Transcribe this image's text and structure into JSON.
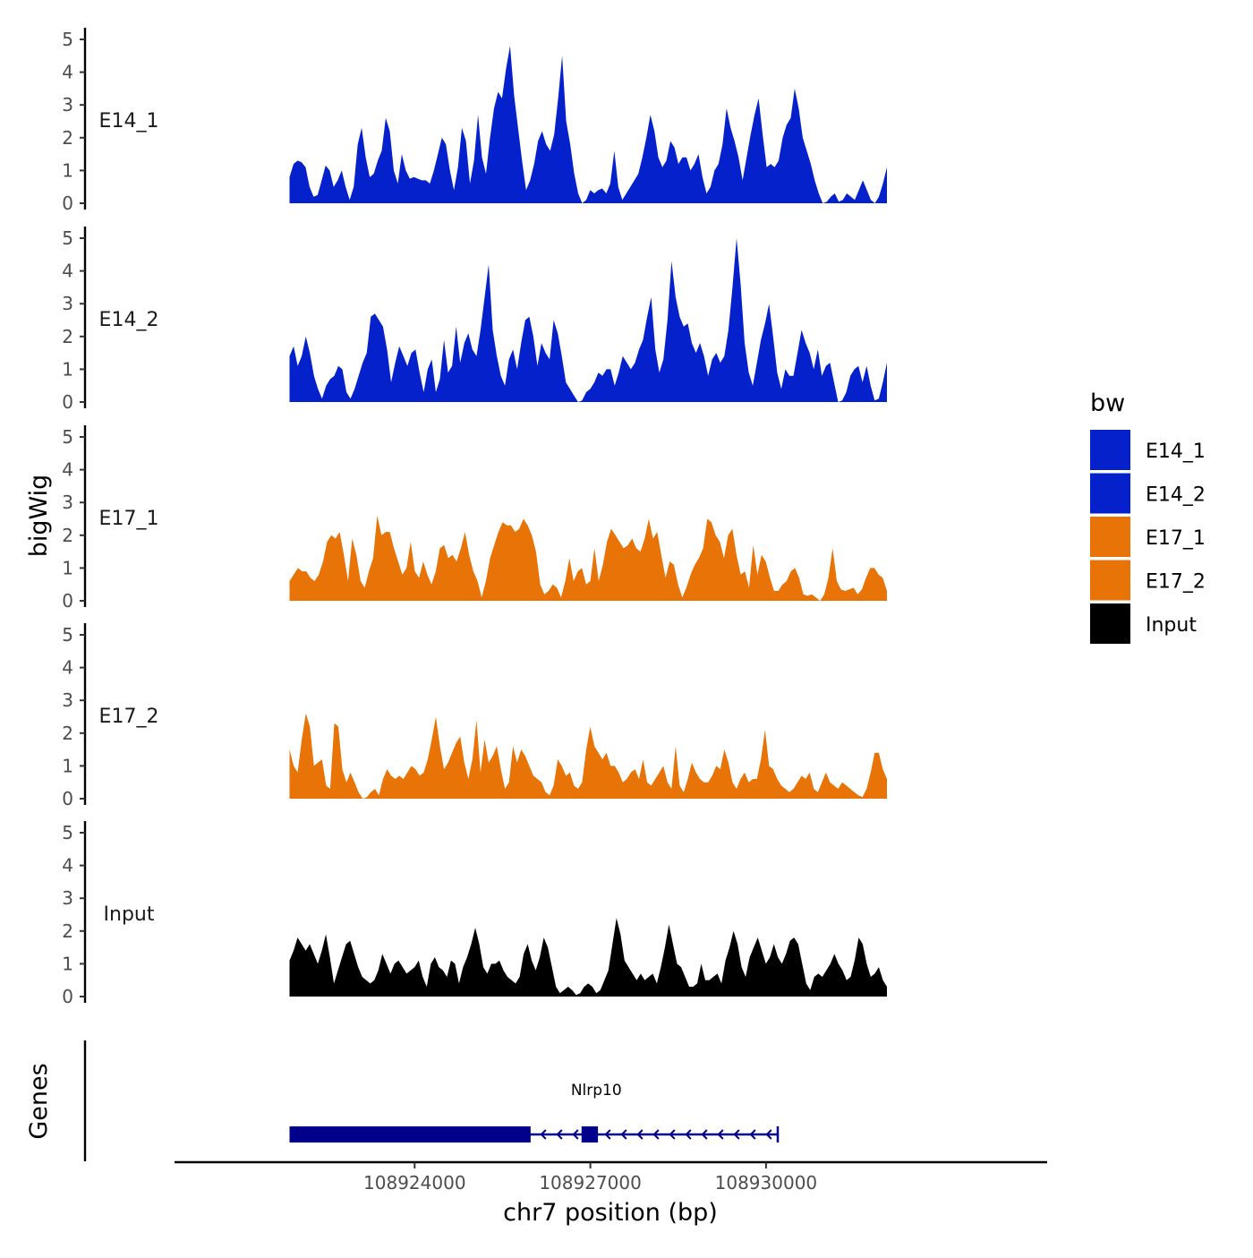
{
  "chart_data": {
    "type": "area",
    "title": "",
    "ylabel": "bigWig",
    "genes_label": "Genes",
    "xlabel": "chr7 position (bp)",
    "xlim": [
      108919900,
      108934800
    ],
    "ylim": [
      0,
      5.3
    ],
    "x_ticks": [
      108924000,
      108927000,
      108930000
    ],
    "y_ticks": [
      0,
      1,
      2,
      3,
      4,
      5
    ],
    "legend": {
      "title": "bw",
      "entries": [
        {
          "label": "E14_1",
          "color": "#0421CC"
        },
        {
          "label": "E14_2",
          "color": "#0421CC"
        },
        {
          "label": "E17_1",
          "color": "#E87306"
        },
        {
          "label": "E17_2",
          "color": "#E87306"
        },
        {
          "label": "Input",
          "color": "#000000"
        }
      ]
    },
    "track_start": 108921864,
    "track_end": 108932064,
    "tracks": [
      {
        "name": "E14_1",
        "color": "#0421CC",
        "values": [
          0.8,
          1.2,
          1.3,
          1.25,
          1.1,
          0.5,
          0.2,
          0.25,
          0.7,
          1.15,
          1.0,
          0.5,
          0.7,
          1.0,
          0.5,
          0.1,
          0.5,
          1.8,
          2.3,
          1.4,
          0.8,
          0.9,
          1.3,
          1.6,
          2.6,
          2.2,
          1.0,
          0.6,
          1.5,
          1.0,
          0.75,
          0.8,
          0.75,
          0.7,
          0.7,
          0.6,
          1.0,
          1.5,
          2.0,
          1.8,
          1.0,
          0.4,
          1.1,
          2.3,
          1.9,
          0.6,
          1.3,
          2.7,
          1.4,
          0.9,
          2.0,
          2.9,
          3.4,
          3.2,
          4.1,
          4.8,
          3.3,
          2.3,
          1.3,
          0.4,
          0.7,
          1.2,
          1.9,
          2.2,
          1.8,
          1.6,
          2.1,
          3.2,
          4.5,
          2.5,
          1.8,
          0.9,
          0.3,
          0.0,
          0.1,
          0.4,
          0.3,
          0.4,
          0.45,
          0.3,
          0.6,
          1.6,
          0.5,
          0.1,
          0.3,
          0.5,
          0.7,
          0.9,
          1.4,
          2.0,
          2.7,
          2.2,
          1.4,
          1.1,
          1.3,
          1.9,
          1.7,
          1.2,
          1.4,
          1.4,
          1.0,
          1.2,
          1.5,
          0.8,
          0.3,
          0.5,
          1.0,
          1.2,
          1.8,
          2.9,
          2.3,
          1.9,
          1.4,
          0.7,
          1.4,
          2.1,
          2.7,
          3.2,
          2.1,
          1.1,
          1.2,
          1.1,
          1.3,
          2.0,
          2.4,
          2.6,
          3.5,
          2.9,
          2.0,
          1.6,
          1.2,
          0.7,
          0.3,
          0.0,
          0.05,
          0.2,
          0.3,
          0.05,
          0.1,
          0.3,
          0.2,
          0.1,
          0.4,
          0.7,
          0.4,
          0.1,
          0.0,
          0.2,
          0.6,
          1.1
        ]
      },
      {
        "name": "E14_2",
        "color": "#0421CC",
        "values": [
          1.4,
          1.7,
          1.1,
          1.4,
          2.0,
          1.5,
          0.8,
          0.4,
          0.1,
          0.5,
          0.7,
          0.8,
          1.1,
          1.0,
          0.3,
          0.1,
          0.4,
          0.8,
          1.2,
          1.5,
          2.6,
          2.7,
          2.5,
          2.3,
          1.6,
          0.6,
          1.2,
          1.7,
          1.4,
          1.1,
          1.5,
          1.6,
          0.9,
          0.3,
          1.0,
          1.3,
          0.3,
          0.7,
          1.9,
          0.9,
          1.1,
          2.3,
          1.2,
          1.8,
          2.1,
          1.6,
          1.4,
          2.2,
          3.2,
          4.2,
          2.2,
          1.4,
          0.8,
          0.5,
          1.3,
          1.6,
          1.0,
          1.8,
          2.5,
          2.6,
          2.0,
          1.1,
          1.8,
          1.5,
          1.3,
          2.5,
          2.1,
          1.4,
          0.6,
          0.4,
          0.2,
          0.0,
          0.05,
          0.3,
          0.4,
          0.6,
          0.9,
          0.8,
          1.0,
          1.0,
          0.5,
          0.9,
          1.4,
          1.2,
          1.0,
          1.2,
          1.6,
          1.9,
          2.6,
          3.2,
          1.6,
          0.9,
          1.3,
          2.5,
          4.3,
          3.2,
          2.6,
          2.3,
          2.4,
          1.8,
          1.5,
          1.8,
          1.4,
          0.8,
          1.3,
          1.5,
          1.2,
          1.4,
          2.2,
          3.5,
          5.0,
          3.6,
          1.8,
          0.9,
          0.5,
          1.2,
          1.9,
          2.4,
          3.0,
          2.0,
          0.9,
          0.4,
          1.0,
          0.8,
          0.8,
          1.5,
          2.2,
          1.8,
          1.5,
          1.0,
          1.6,
          0.8,
          1.1,
          1.2,
          0.6,
          0.0,
          0.05,
          0.3,
          0.8,
          1.0,
          1.1,
          0.6,
          1.1,
          0.5,
          0.05,
          0.1,
          0.6,
          1.2
        ]
      },
      {
        "name": "E17_1",
        "color": "#E87306",
        "values": [
          0.6,
          0.8,
          1.0,
          0.9,
          0.9,
          0.7,
          0.6,
          0.8,
          1.2,
          1.8,
          2.0,
          1.9,
          2.1,
          1.4,
          0.6,
          1.9,
          1.4,
          0.6,
          0.4,
          0.9,
          1.3,
          2.6,
          2.0,
          2.1,
          2.1,
          1.6,
          1.2,
          0.8,
          1.0,
          1.8,
          0.9,
          0.7,
          1.2,
          0.8,
          0.5,
          0.9,
          1.6,
          1.7,
          1.3,
          1.4,
          1.2,
          1.6,
          2.1,
          1.4,
          0.9,
          0.6,
          0.1,
          0.6,
          1.3,
          1.7,
          2.1,
          2.4,
          2.3,
          2.3,
          2.1,
          2.2,
          2.5,
          2.3,
          2.0,
          1.5,
          0.5,
          0.2,
          0.3,
          0.5,
          0.4,
          0.1,
          0.6,
          1.3,
          0.6,
          0.9,
          1.0,
          0.5,
          0.6,
          1.6,
          0.6,
          1.1,
          1.8,
          2.2,
          2.0,
          1.8,
          1.6,
          1.7,
          1.9,
          1.6,
          1.5,
          1.9,
          2.5,
          1.9,
          2.1,
          1.4,
          0.7,
          1.2,
          1.1,
          0.5,
          0.1,
          0.4,
          0.8,
          1.1,
          1.3,
          1.6,
          2.5,
          2.4,
          2.0,
          1.8,
          1.3,
          2.0,
          2.2,
          1.4,
          0.8,
          0.9,
          0.4,
          1.7,
          0.8,
          1.4,
          1.2,
          0.7,
          0.3,
          0.3,
          0.5,
          0.6,
          0.9,
          1.0,
          0.7,
          0.2,
          0.15,
          0.2,
          0.1,
          0.0,
          0.2,
          0.7,
          1.6,
          0.6,
          0.35,
          0.3,
          0.35,
          0.4,
          0.2,
          0.35,
          0.7,
          1.0,
          1.0,
          0.8,
          0.7,
          0.3
        ]
      },
      {
        "name": "E17_2",
        "color": "#E87306",
        "values": [
          1.5,
          1.0,
          0.8,
          1.8,
          2.6,
          2.2,
          1.0,
          1.1,
          1.2,
          0.4,
          0.3,
          2.3,
          2.2,
          0.9,
          0.5,
          0.8,
          0.5,
          0.2,
          0.0,
          0.05,
          0.2,
          0.3,
          0.1,
          0.6,
          0.9,
          0.7,
          0.6,
          0.7,
          0.6,
          0.8,
          1.0,
          0.9,
          0.7,
          0.8,
          1.2,
          1.8,
          2.5,
          1.6,
          0.9,
          1.1,
          1.4,
          1.7,
          1.9,
          1.1,
          0.6,
          1.2,
          2.4,
          0.8,
          1.8,
          1.1,
          1.3,
          1.6,
          0.9,
          0.3,
          0.5,
          1.6,
          1.1,
          1.5,
          1.3,
          1.0,
          0.7,
          0.6,
          0.5,
          0.2,
          0.1,
          0.4,
          1.2,
          1.0,
          0.7,
          0.8,
          0.4,
          0.3,
          0.5,
          1.5,
          2.2,
          1.6,
          1.4,
          1.2,
          1.4,
          1.0,
          1.0,
          0.8,
          0.5,
          0.6,
          0.8,
          0.9,
          0.6,
          1.2,
          0.5,
          0.4,
          0.6,
          0.8,
          1.0,
          0.5,
          0.3,
          1.6,
          0.4,
          0.2,
          0.6,
          1.1,
          0.8,
          0.6,
          0.5,
          0.5,
          0.7,
          1.0,
          0.9,
          1.5,
          1.1,
          0.5,
          0.3,
          0.6,
          0.8,
          0.5,
          0.6,
          0.6,
          1.2,
          2.1,
          1.0,
          0.9,
          0.6,
          0.4,
          0.3,
          0.2,
          0.3,
          0.5,
          0.7,
          0.6,
          0.8,
          0.3,
          0.2,
          0.5,
          0.8,
          0.5,
          0.4,
          0.3,
          0.5,
          0.4,
          0.3,
          0.2,
          0.1,
          0.05,
          0.3,
          0.8,
          1.4,
          1.4,
          0.9,
          0.6
        ]
      },
      {
        "name": "Input",
        "color": "#000000",
        "values": [
          1.1,
          1.4,
          1.8,
          1.6,
          1.4,
          1.6,
          1.3,
          1.0,
          1.4,
          1.9,
          1.2,
          0.4,
          0.8,
          1.2,
          1.6,
          1.7,
          1.3,
          0.9,
          0.6,
          0.5,
          0.4,
          0.5,
          0.8,
          1.3,
          1.0,
          0.7,
          1.0,
          1.1,
          0.9,
          0.7,
          0.8,
          0.9,
          1.1,
          0.6,
          0.3,
          1.0,
          1.2,
          0.9,
          0.8,
          0.6,
          1.1,
          1.0,
          0.4,
          0.9,
          1.2,
          1.6,
          2.1,
          1.6,
          0.9,
          0.7,
          1.0,
          1.0,
          1.1,
          0.8,
          0.6,
          0.5,
          0.4,
          0.6,
          1.3,
          1.6,
          1.1,
          0.8,
          1.2,
          1.8,
          1.5,
          0.9,
          0.3,
          0.1,
          0.2,
          0.3,
          0.2,
          0.05,
          0.1,
          0.3,
          0.4,
          0.3,
          0.1,
          0.2,
          0.5,
          0.8,
          1.6,
          2.4,
          1.9,
          1.1,
          0.9,
          0.7,
          0.5,
          0.7,
          0.5,
          0.6,
          0.7,
          0.4,
          0.9,
          1.5,
          2.2,
          1.6,
          1.0,
          0.9,
          0.6,
          0.3,
          0.3,
          0.4,
          1.0,
          0.5,
          0.5,
          0.6,
          0.7,
          0.4,
          1.1,
          1.5,
          2.0,
          1.6,
          0.9,
          0.6,
          1.2,
          1.5,
          1.8,
          1.4,
          1.0,
          1.2,
          1.6,
          1.2,
          1.0,
          1.3,
          1.7,
          1.8,
          1.6,
          1.0,
          0.4,
          0.2,
          0.6,
          0.7,
          0.6,
          0.8,
          1.0,
          1.3,
          1.0,
          0.8,
          0.5,
          0.6,
          1.1,
          1.8,
          1.6,
          1.0,
          0.6,
          0.7,
          0.9,
          0.5,
          0.3
        ]
      }
    ],
    "gene": {
      "name": "Nlrp10",
      "start": 108921864,
      "end": 108930200,
      "strand": "-",
      "exons": [
        [
          108921864,
          108925980
        ],
        [
          108926850,
          108927130
        ]
      ],
      "color": "#00008B"
    }
  }
}
